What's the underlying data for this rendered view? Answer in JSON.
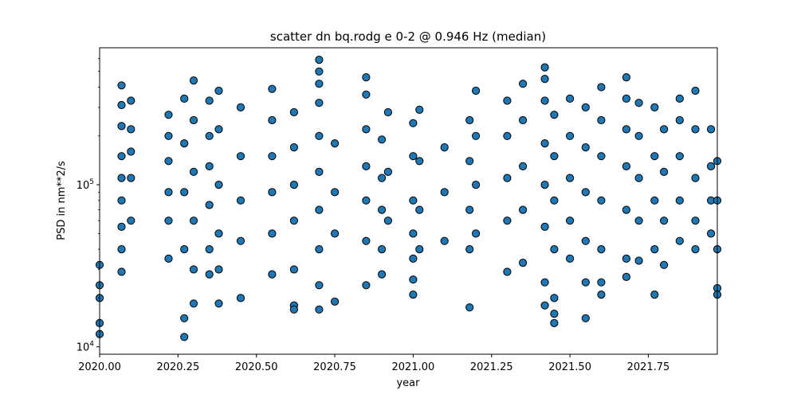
{
  "chart_data": {
    "type": "scatter",
    "title": "scatter dn bq.rodg e 0-2 @ 0.946 Hz (median)",
    "xlabel": "year",
    "ylabel": "PSD in nm**2/s",
    "xlim": [
      2020.0,
      2021.97
    ],
    "ylim": [
      9000,
      700000
    ],
    "yscale": "log",
    "grid": false,
    "legend": "none",
    "marker_color": "#1f77b4",
    "edge_color": "#000000",
    "x_ticks": [
      2020.0,
      2020.25,
      2020.5,
      2020.75,
      2021.0,
      2021.25,
      2021.5,
      2021.75
    ],
    "x_tick_labels": [
      "2020.00",
      "2020.25",
      "2020.50",
      "2020.75",
      "2021.00",
      "2021.25",
      "2021.50",
      "2021.75"
    ],
    "y_ticks": [
      10000,
      100000
    ],
    "y_tick_labels": [
      {
        "base": "10",
        "exp": "4"
      },
      {
        "base": "10",
        "exp": "5"
      }
    ],
    "series": [
      {
        "points": [
          [
            2020.0,
            32000
          ],
          [
            2020.0,
            24000
          ],
          [
            2020.0,
            20000
          ],
          [
            2020.0,
            14000
          ],
          [
            2020.0,
            12000
          ],
          [
            2020.07,
            410000
          ],
          [
            2020.07,
            310000
          ],
          [
            2020.07,
            230000
          ],
          [
            2020.07,
            150000
          ],
          [
            2020.07,
            110000
          ],
          [
            2020.07,
            80000
          ],
          [
            2020.07,
            55000
          ],
          [
            2020.07,
            40000
          ],
          [
            2020.07,
            29000
          ],
          [
            2020.1,
            330000
          ],
          [
            2020.1,
            220000
          ],
          [
            2020.1,
            160000
          ],
          [
            2020.1,
            110000
          ],
          [
            2020.1,
            60000
          ],
          [
            2020.22,
            270000
          ],
          [
            2020.22,
            200000
          ],
          [
            2020.22,
            140000
          ],
          [
            2020.22,
            90000
          ],
          [
            2020.22,
            60000
          ],
          [
            2020.22,
            35000
          ],
          [
            2020.27,
            340000
          ],
          [
            2020.27,
            180000
          ],
          [
            2020.27,
            90000
          ],
          [
            2020.27,
            40000
          ],
          [
            2020.27,
            15000
          ],
          [
            2020.27,
            11500
          ],
          [
            2020.3,
            440000
          ],
          [
            2020.3,
            250000
          ],
          [
            2020.3,
            120000
          ],
          [
            2020.3,
            60000
          ],
          [
            2020.3,
            30000
          ],
          [
            2020.3,
            18500
          ],
          [
            2020.35,
            330000
          ],
          [
            2020.35,
            200000
          ],
          [
            2020.35,
            130000
          ],
          [
            2020.35,
            75000
          ],
          [
            2020.35,
            40000
          ],
          [
            2020.35,
            28000
          ],
          [
            2020.38,
            380000
          ],
          [
            2020.38,
            220000
          ],
          [
            2020.38,
            100000
          ],
          [
            2020.38,
            50000
          ],
          [
            2020.38,
            30000
          ],
          [
            2020.38,
            18500
          ],
          [
            2020.45,
            300000
          ],
          [
            2020.45,
            150000
          ],
          [
            2020.45,
            80000
          ],
          [
            2020.45,
            45000
          ],
          [
            2020.45,
            20000
          ],
          [
            2020.55,
            390000
          ],
          [
            2020.55,
            250000
          ],
          [
            2020.55,
            150000
          ],
          [
            2020.55,
            90000
          ],
          [
            2020.55,
            50000
          ],
          [
            2020.55,
            28000
          ],
          [
            2020.62,
            280000
          ],
          [
            2020.62,
            170000
          ],
          [
            2020.62,
            100000
          ],
          [
            2020.62,
            60000
          ],
          [
            2020.62,
            30000
          ],
          [
            2020.62,
            18000
          ],
          [
            2020.62,
            17000
          ],
          [
            2020.7,
            590000
          ],
          [
            2020.7,
            500000
          ],
          [
            2020.7,
            420000
          ],
          [
            2020.7,
            320000
          ],
          [
            2020.7,
            200000
          ],
          [
            2020.7,
            120000
          ],
          [
            2020.7,
            70000
          ],
          [
            2020.7,
            40000
          ],
          [
            2020.7,
            24000
          ],
          [
            2020.7,
            17000
          ],
          [
            2020.75,
            180000
          ],
          [
            2020.75,
            90000
          ],
          [
            2020.75,
            50000
          ],
          [
            2020.75,
            19000
          ],
          [
            2020.85,
            460000
          ],
          [
            2020.85,
            360000
          ],
          [
            2020.85,
            220000
          ],
          [
            2020.85,
            130000
          ],
          [
            2020.85,
            80000
          ],
          [
            2020.85,
            45000
          ],
          [
            2020.85,
            24000
          ],
          [
            2020.9,
            190000
          ],
          [
            2020.9,
            110000
          ],
          [
            2020.9,
            70000
          ],
          [
            2020.9,
            40000
          ],
          [
            2020.9,
            28000
          ],
          [
            2020.92,
            280000
          ],
          [
            2020.92,
            120000
          ],
          [
            2020.92,
            60000
          ],
          [
            2021.0,
            240000
          ],
          [
            2021.0,
            150000
          ],
          [
            2021.0,
            80000
          ],
          [
            2021.0,
            50000
          ],
          [
            2021.0,
            35000
          ],
          [
            2021.0,
            26000
          ],
          [
            2021.0,
            21000
          ],
          [
            2021.02,
            290000
          ],
          [
            2021.02,
            140000
          ],
          [
            2021.02,
            70000
          ],
          [
            2021.02,
            40000
          ],
          [
            2021.1,
            170000
          ],
          [
            2021.1,
            90000
          ],
          [
            2021.1,
            45000
          ],
          [
            2021.18,
            250000
          ],
          [
            2021.18,
            140000
          ],
          [
            2021.18,
            70000
          ],
          [
            2021.18,
            40000
          ],
          [
            2021.18,
            17500
          ],
          [
            2021.2,
            380000
          ],
          [
            2021.2,
            200000
          ],
          [
            2021.2,
            100000
          ],
          [
            2021.2,
            50000
          ],
          [
            2021.3,
            330000
          ],
          [
            2021.3,
            200000
          ],
          [
            2021.3,
            110000
          ],
          [
            2021.3,
            60000
          ],
          [
            2021.3,
            29000
          ],
          [
            2021.35,
            420000
          ],
          [
            2021.35,
            250000
          ],
          [
            2021.35,
            130000
          ],
          [
            2021.35,
            70000
          ],
          [
            2021.35,
            33000
          ],
          [
            2021.42,
            530000
          ],
          [
            2021.42,
            450000
          ],
          [
            2021.42,
            330000
          ],
          [
            2021.42,
            180000
          ],
          [
            2021.42,
            100000
          ],
          [
            2021.42,
            55000
          ],
          [
            2021.42,
            25000
          ],
          [
            2021.42,
            18000
          ],
          [
            2021.45,
            270000
          ],
          [
            2021.45,
            150000
          ],
          [
            2021.45,
            80000
          ],
          [
            2021.45,
            40000
          ],
          [
            2021.45,
            20000
          ],
          [
            2021.45,
            16000
          ],
          [
            2021.45,
            14000
          ],
          [
            2021.5,
            340000
          ],
          [
            2021.5,
            200000
          ],
          [
            2021.5,
            110000
          ],
          [
            2021.5,
            60000
          ],
          [
            2021.5,
            35000
          ],
          [
            2021.55,
            300000
          ],
          [
            2021.55,
            170000
          ],
          [
            2021.55,
            90000
          ],
          [
            2021.55,
            45000
          ],
          [
            2021.55,
            25000
          ],
          [
            2021.55,
            15000
          ],
          [
            2021.6,
            400000
          ],
          [
            2021.6,
            250000
          ],
          [
            2021.6,
            150000
          ],
          [
            2021.6,
            80000
          ],
          [
            2021.6,
            40000
          ],
          [
            2021.6,
            25000
          ],
          [
            2021.6,
            21000
          ],
          [
            2021.68,
            460000
          ],
          [
            2021.68,
            340000
          ],
          [
            2021.68,
            220000
          ],
          [
            2021.68,
            130000
          ],
          [
            2021.68,
            70000
          ],
          [
            2021.68,
            35000
          ],
          [
            2021.68,
            27000
          ],
          [
            2021.72,
            320000
          ],
          [
            2021.72,
            200000
          ],
          [
            2021.72,
            110000
          ],
          [
            2021.72,
            60000
          ],
          [
            2021.72,
            34000
          ],
          [
            2021.77,
            300000
          ],
          [
            2021.77,
            150000
          ],
          [
            2021.77,
            80000
          ],
          [
            2021.77,
            40000
          ],
          [
            2021.77,
            21000
          ],
          [
            2021.8,
            220000
          ],
          [
            2021.8,
            120000
          ],
          [
            2021.8,
            60000
          ],
          [
            2021.8,
            32000
          ],
          [
            2021.85,
            340000
          ],
          [
            2021.85,
            250000
          ],
          [
            2021.85,
            150000
          ],
          [
            2021.85,
            80000
          ],
          [
            2021.85,
            45000
          ],
          [
            2021.9,
            380000
          ],
          [
            2021.9,
            220000
          ],
          [
            2021.9,
            110000
          ],
          [
            2021.9,
            60000
          ],
          [
            2021.9,
            40000
          ],
          [
            2021.95,
            220000
          ],
          [
            2021.95,
            130000
          ],
          [
            2021.95,
            80000
          ],
          [
            2021.95,
            50000
          ],
          [
            2021.97,
            140000
          ],
          [
            2021.97,
            80000
          ],
          [
            2021.97,
            40000
          ],
          [
            2021.97,
            23000
          ],
          [
            2021.97,
            21000
          ]
        ]
      }
    ]
  }
}
